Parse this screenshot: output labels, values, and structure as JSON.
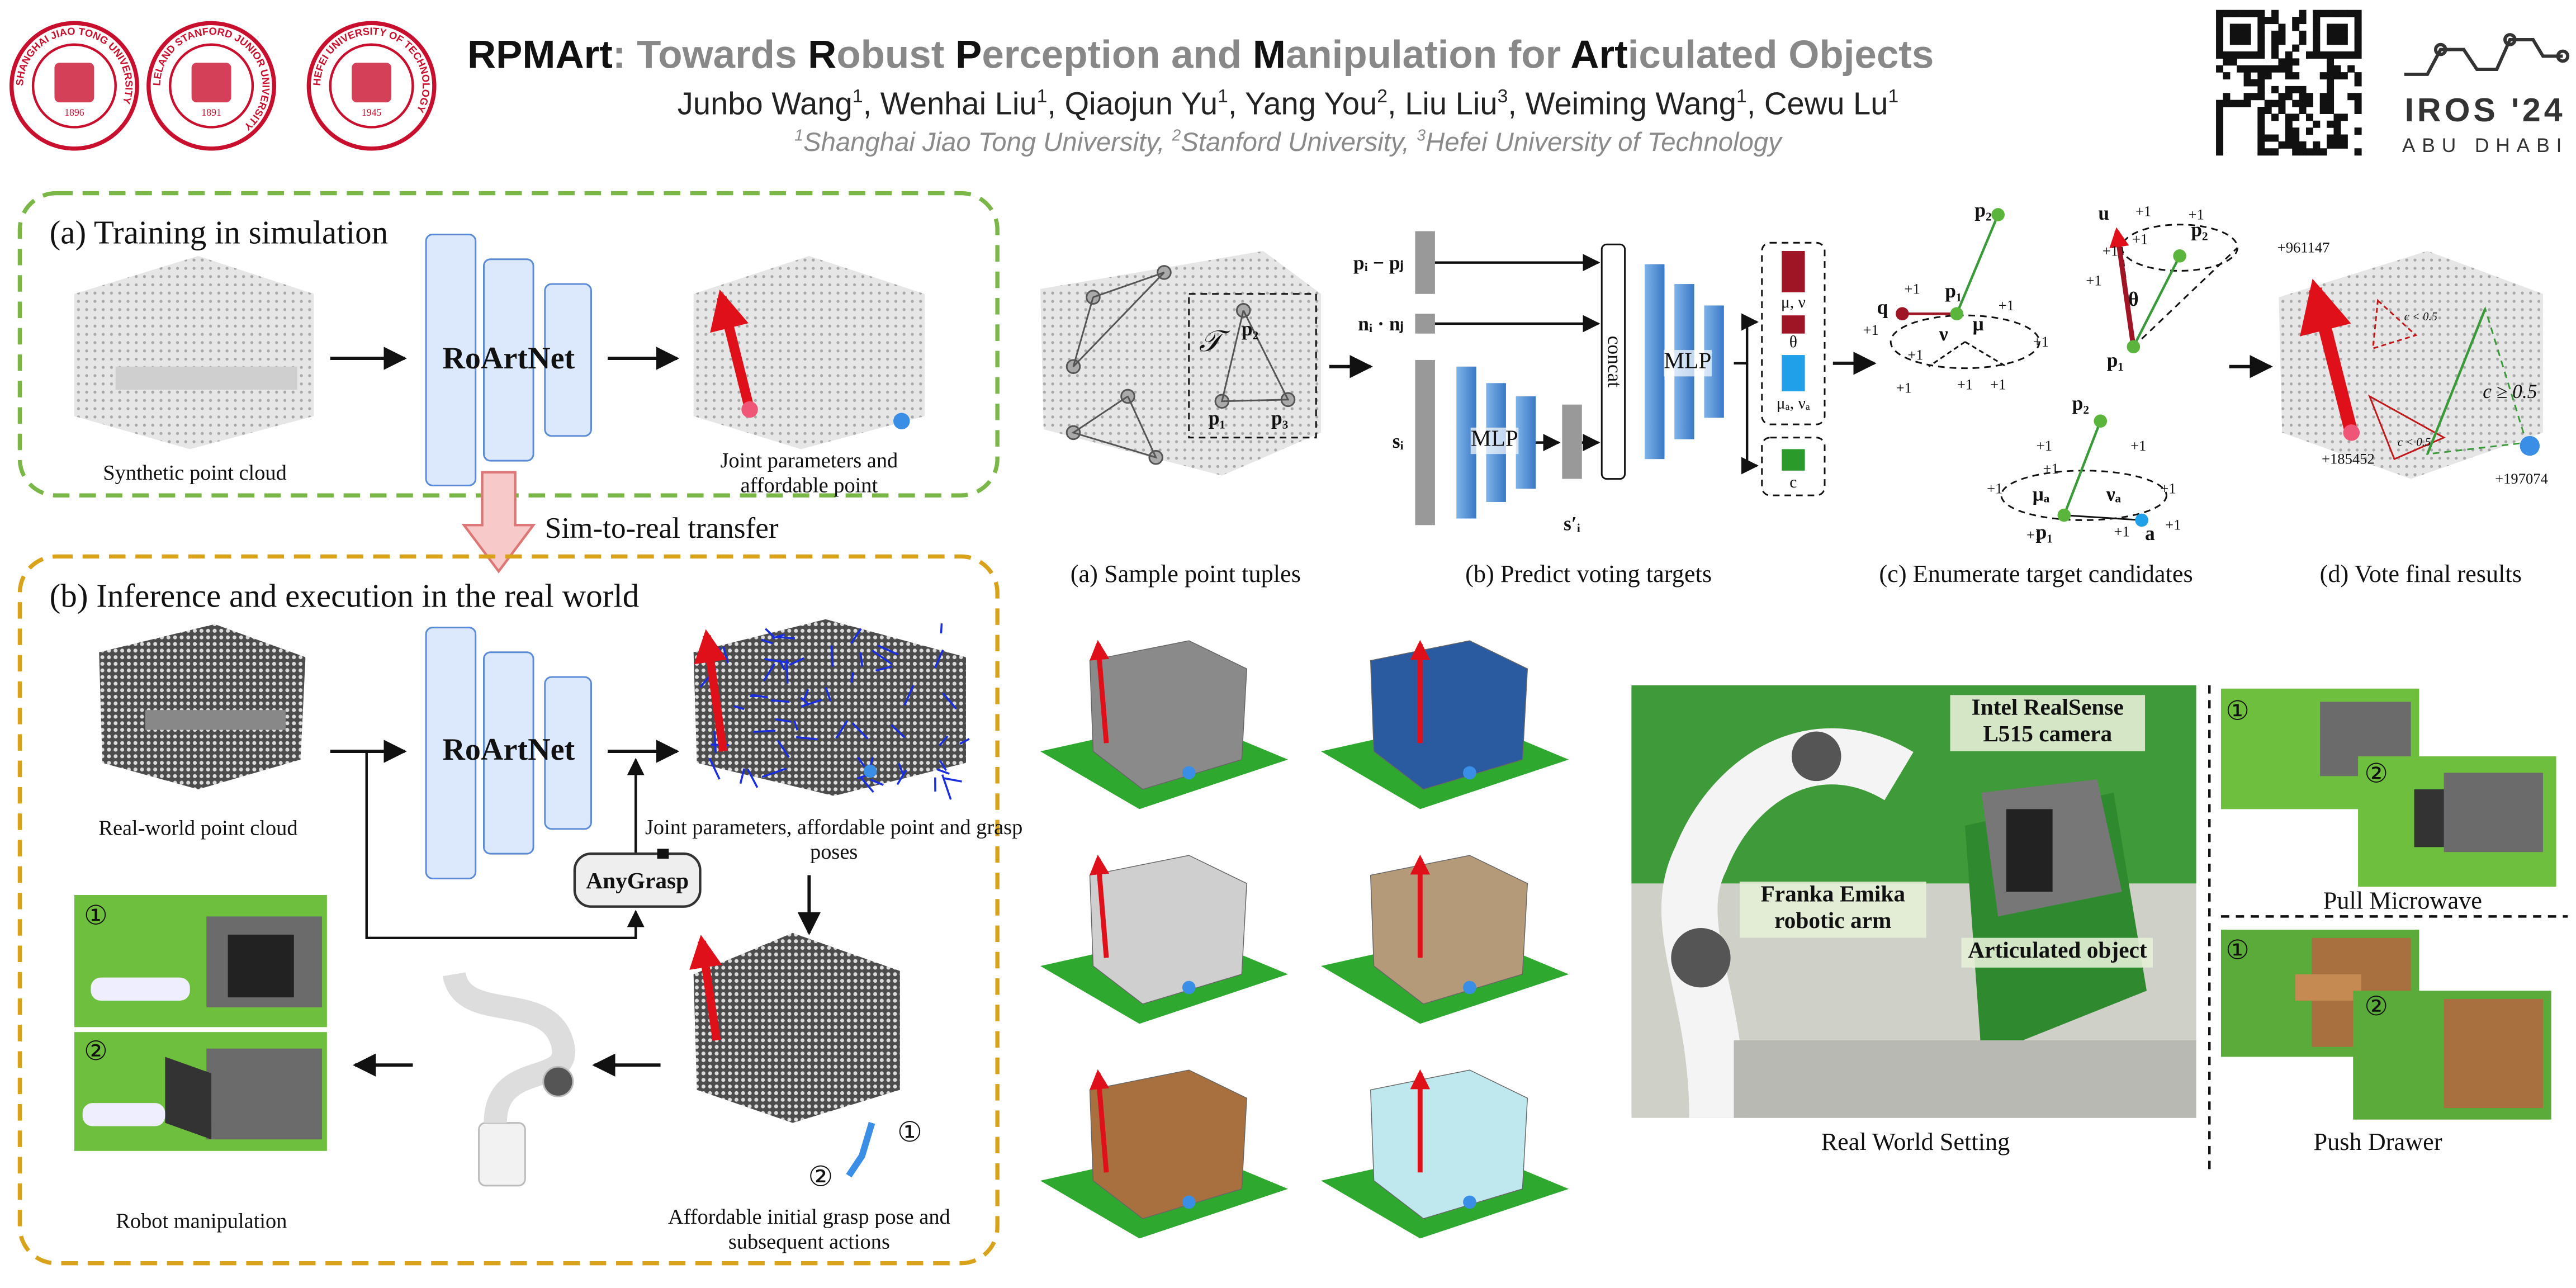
{
  "header": {
    "logos": [
      {
        "name": "SHANGHAI JIAO TONG UNIVERSITY",
        "year": "1896"
      },
      {
        "name": "LELAND STANFORD JUNIOR UNIVERSITY",
        "year": "1891"
      },
      {
        "name": "HEFEI UNIVERSITY OF TECHNOLOGY",
        "year": "1945"
      }
    ],
    "title_parts": [
      "RPMArt",
      ": Towards ",
      "R",
      "obust ",
      "P",
      "erception and ",
      "M",
      "anipulation for ",
      "Art",
      "iculated Objects"
    ],
    "authors": [
      {
        "name": "Junbo Wang",
        "sup": "1",
        "sep": ","
      },
      {
        "name": "Wenhai Liu",
        "sup": "1",
        "sep": ","
      },
      {
        "name": "Qiaojun Yu",
        "sup": "1",
        "sep": ","
      },
      {
        "name": "Yang You",
        "sup": "2",
        "sep": ","
      },
      {
        "name": "Liu Liu",
        "sup": "3",
        "sep": ","
      },
      {
        "name": "Weiming Wang",
        "sup": "1",
        "sep": ","
      },
      {
        "name": "Cewu Lu",
        "sup": "1"
      }
    ],
    "affiliations": [
      {
        "sup": "1",
        "name": "Shanghai Jiao Tong University,"
      },
      {
        "sup": "2",
        "name": "Stanford University,"
      },
      {
        "sup": "3",
        "name": "Hefei University of Technology"
      }
    ],
    "conference": {
      "name": "IROS '24",
      "location": "ABU DHABI"
    }
  },
  "training": {
    "title": "(a) Training in simulation",
    "input": "Synthetic point cloud",
    "network": "RoArtNet",
    "output": "Joint parameters and affordable point"
  },
  "transfer": "Sim-to-real transfer",
  "inference": {
    "title": "(b) Inference and execution in the real world",
    "input": "Real-world point cloud",
    "network": "RoArtNet",
    "output": "Joint parameters, affordable point and grasp poses",
    "grasp_module": "AnyGrasp",
    "grasp_caption": "Affordable initial grasp pose and subsequent actions",
    "steps": [
      "①",
      "②"
    ],
    "manipulation": "Robot manipulation"
  },
  "pipeline": {
    "captions": [
      "(a) Sample point tuples",
      "(b) Predict voting targets",
      "(c) Enumerate target candidates",
      "(d) Vote final results"
    ],
    "sample": {
      "tuple": "𝒯",
      "points": [
        "p₂",
        "p₁",
        "p₃"
      ]
    },
    "network": {
      "inputs": [
        "pᵢ − pⱼ",
        "nᵢ · nⱼ",
        "sᵢ"
      ],
      "mlp1": "MLP",
      "feature": "s′ᵢ",
      "concat": "concat",
      "mlp2": "MLP",
      "outputs": [
        "μ, ν",
        "θ",
        "μₐ, νₐ",
        "c"
      ]
    },
    "candidates": [
      {
        "labels": [
          "q",
          "p₁",
          "p₂",
          "μ",
          "ν"
        ],
        "votes": [
          "+1",
          "+1",
          "+1",
          "+1",
          "+1",
          "+1",
          "+1",
          "+1"
        ]
      },
      {
        "labels": [
          "u",
          "p₁",
          "p₂",
          "θ"
        ],
        "votes": [
          "+1",
          "+1",
          "+1",
          "+1",
          "+1"
        ]
      },
      {
        "labels": [
          "p₂",
          "p₁",
          "a",
          "μₐ",
          "νₐ"
        ],
        "votes": [
          "+1",
          "+1",
          "+1",
          "+1",
          "+1",
          "+1",
          "+1",
          "+1"
        ]
      }
    ],
    "final": {
      "votes": [
        "+961147",
        "+185452",
        "+197074"
      ],
      "conditions": [
        "c < 0.5",
        "c < 0.5",
        "c ≥ 0.5"
      ]
    }
  },
  "real_world": {
    "labels": [
      "Intel RealSense L515 camera",
      "Franka Emika robotic arm",
      "Articulated object"
    ],
    "caption": "Real World Setting",
    "tasks": [
      {
        "name": "Pull Microwave",
        "steps": [
          "①",
          "②"
        ]
      },
      {
        "name": "Push Drawer",
        "steps": [
          "①",
          "②"
        ]
      }
    ]
  }
}
